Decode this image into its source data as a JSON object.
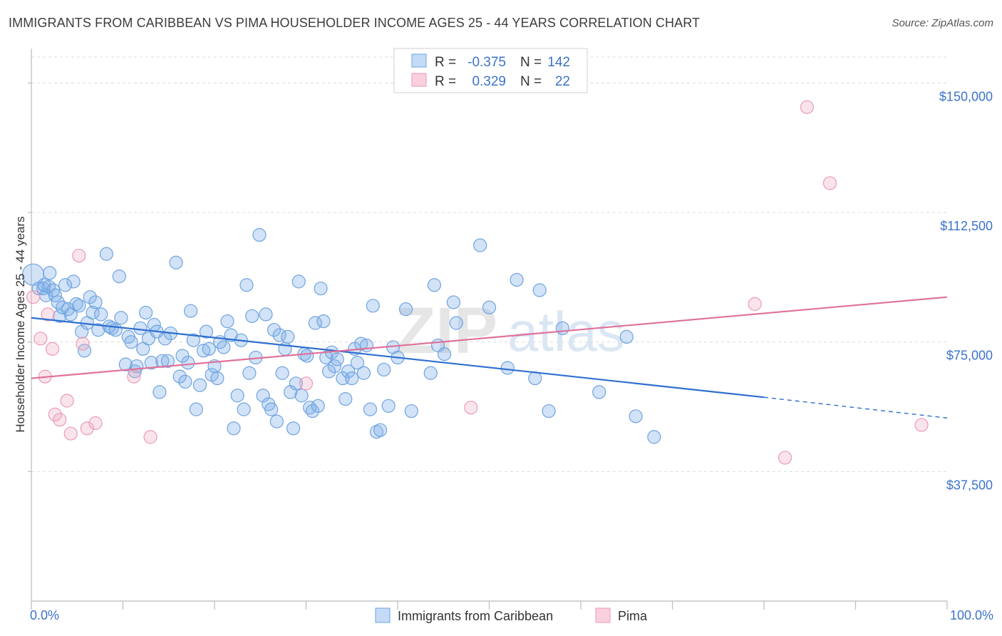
{
  "title": "IMMIGRANTS FROM CARIBBEAN VS PIMA HOUSEHOLDER INCOME AGES 25 - 44 YEARS CORRELATION CHART",
  "source": "Source: ZipAtlas.com",
  "watermark": {
    "zip": "ZIP",
    "atlas": "atlas"
  },
  "colors": {
    "blue": "#7fb0e8",
    "blue_line": "#2f6fd0",
    "pink": "#f0a5be",
    "pink_line": "#e0709a",
    "tick_text": "#3b73c9"
  },
  "legend": {
    "rows": [
      {
        "r_label": "R =",
        "r_value": "-0.375",
        "n_label": "N =",
        "n_value": "142"
      },
      {
        "r_label": "R =",
        "r_value": "0.329",
        "n_label": "N =",
        "n_value": "22"
      }
    ]
  },
  "bottom_legend": [
    "Immigrants from Caribbean",
    "Pima"
  ],
  "chart_data": {
    "type": "scatter",
    "title": "IMMIGRANTS FROM CARIBBEAN VS PIMA HOUSEHOLDER INCOME AGES 25 - 44 YEARS CORRELATION CHART",
    "xlabel": "",
    "ylabel": "Householder Income Ages 25 - 44 years",
    "xlim": [
      0,
      100
    ],
    "ylim": [
      0,
      157500
    ],
    "x_tick_labels": [
      "0.0%",
      "100.0%"
    ],
    "y_ticks": [
      37500,
      75000,
      112500,
      150000
    ],
    "y_tick_labels": [
      "$37,500",
      "$75,000",
      "$112,500",
      "$150,000"
    ],
    "grid": true,
    "legend_position": "top-center",
    "series": [
      {
        "name": "Immigrants from Caribbean",
        "color": "#7fb0e8",
        "trend": {
          "x": [
            0,
            80,
            100
          ],
          "y": [
            82000,
            59000,
            53000
          ],
          "dashed_from": 80
        },
        "points": [
          [
            0.2,
            94500
          ],
          [
            0.8,
            90500
          ],
          [
            1.3,
            90500
          ],
          [
            1.6,
            88500
          ],
          [
            1.9,
            91000
          ],
          [
            1.4,
            91500
          ],
          [
            2.0,
            95000
          ],
          [
            2.4,
            90000
          ],
          [
            2.6,
            88500
          ],
          [
            2.9,
            86500
          ],
          [
            3.1,
            82500
          ],
          [
            3.4,
            85000
          ],
          [
            3.7,
            91500
          ],
          [
            4.0,
            84500
          ],
          [
            4.3,
            83000
          ],
          [
            4.6,
            92500
          ],
          [
            4.9,
            86000
          ],
          [
            5.2,
            85500
          ],
          [
            5.5,
            78000
          ],
          [
            5.8,
            72500
          ],
          [
            6.1,
            80500
          ],
          [
            6.4,
            88000
          ],
          [
            6.7,
            83500
          ],
          [
            7.0,
            86500
          ],
          [
            7.3,
            78500
          ],
          [
            7.6,
            83000
          ],
          [
            8.2,
            100500
          ],
          [
            8.5,
            79500
          ],
          [
            8.8,
            79000
          ],
          [
            9.2,
            78500
          ],
          [
            9.6,
            94000
          ],
          [
            9.8,
            82000
          ],
          [
            10.3,
            68500
          ],
          [
            10.6,
            76500
          ],
          [
            10.9,
            75000
          ],
          [
            11.3,
            66500
          ],
          [
            11.5,
            68000
          ],
          [
            11.9,
            79000
          ],
          [
            12.2,
            73000
          ],
          [
            12.5,
            83500
          ],
          [
            12.8,
            76000
          ],
          [
            13.1,
            69000
          ],
          [
            13.4,
            80000
          ],
          [
            13.7,
            78000
          ],
          [
            14.0,
            60500
          ],
          [
            14.3,
            69500
          ],
          [
            14.6,
            76000
          ],
          [
            14.9,
            69500
          ],
          [
            15.2,
            77500
          ],
          [
            15.8,
            98000
          ],
          [
            16.2,
            65000
          ],
          [
            16.5,
            71000
          ],
          [
            16.8,
            63500
          ],
          [
            17.1,
            69000
          ],
          [
            17.4,
            84000
          ],
          [
            17.7,
            75500
          ],
          [
            18.0,
            55500
          ],
          [
            18.4,
            62500
          ],
          [
            18.8,
            72500
          ],
          [
            19.1,
            78000
          ],
          [
            19.4,
            73000
          ],
          [
            19.7,
            65500
          ],
          [
            20.0,
            68000
          ],
          [
            20.3,
            64500
          ],
          [
            20.6,
            75000
          ],
          [
            21.0,
            73500
          ],
          [
            21.4,
            81000
          ],
          [
            21.8,
            77000
          ],
          [
            22.1,
            50000
          ],
          [
            22.5,
            59500
          ],
          [
            22.9,
            75500
          ],
          [
            23.2,
            55500
          ],
          [
            23.5,
            91500
          ],
          [
            23.8,
            66000
          ],
          [
            24.1,
            82500
          ],
          [
            24.5,
            70500
          ],
          [
            24.9,
            106000
          ],
          [
            25.3,
            59500
          ],
          [
            25.6,
            83000
          ],
          [
            25.9,
            57000
          ],
          [
            26.2,
            55500
          ],
          [
            26.5,
            78500
          ],
          [
            26.8,
            52000
          ],
          [
            27.1,
            77000
          ],
          [
            27.4,
            66000
          ],
          [
            27.7,
            73000
          ],
          [
            28.0,
            76500
          ],
          [
            28.3,
            60500
          ],
          [
            28.6,
            50000
          ],
          [
            28.9,
            63000
          ],
          [
            29.2,
            92500
          ],
          [
            29.5,
            59500
          ],
          [
            29.8,
            71500
          ],
          [
            30.1,
            71000
          ],
          [
            30.4,
            56000
          ],
          [
            30.7,
            55000
          ],
          [
            31.0,
            80500
          ],
          [
            31.3,
            56500
          ],
          [
            31.6,
            90500
          ],
          [
            31.9,
            81000
          ],
          [
            32.2,
            70500
          ],
          [
            32.5,
            66500
          ],
          [
            32.8,
            72000
          ],
          [
            33.1,
            68000
          ],
          [
            33.4,
            70000
          ],
          [
            34.0,
            64500
          ],
          [
            34.3,
            58500
          ],
          [
            34.6,
            66500
          ],
          [
            35.0,
            64500
          ],
          [
            35.3,
            73000
          ],
          [
            35.6,
            69000
          ],
          [
            36.0,
            74500
          ],
          [
            36.3,
            66000
          ],
          [
            36.6,
            74000
          ],
          [
            37.0,
            55500
          ],
          [
            37.3,
            85500
          ],
          [
            37.7,
            49000
          ],
          [
            38.1,
            49500
          ],
          [
            38.5,
            67000
          ],
          [
            39.0,
            56500
          ],
          [
            39.5,
            73500
          ],
          [
            40.0,
            70500
          ],
          [
            40.9,
            84500
          ],
          [
            41.5,
            55000
          ],
          [
            43.6,
            66000
          ],
          [
            44.0,
            91500
          ],
          [
            44.4,
            74000
          ],
          [
            45.1,
            71500
          ],
          [
            46.1,
            86500
          ],
          [
            46.4,
            80500
          ],
          [
            49.0,
            103000
          ],
          [
            50.0,
            85000
          ],
          [
            52.0,
            67500
          ],
          [
            53.0,
            93000
          ],
          [
            55.0,
            64500
          ],
          [
            55.5,
            90000
          ],
          [
            56.5,
            55000
          ],
          [
            58.0,
            79000
          ],
          [
            62.0,
            60500
          ],
          [
            65.0,
            76500
          ],
          [
            66.0,
            53500
          ],
          [
            68.0,
            47500
          ]
        ]
      },
      {
        "name": "Pima",
        "color": "#f0a5be",
        "trend": {
          "x": [
            0,
            100
          ],
          "y": [
            64500,
            88000
          ]
        },
        "points": [
          [
            0.2,
            88000
          ],
          [
            1.0,
            76000
          ],
          [
            1.5,
            65000
          ],
          [
            1.8,
            83000
          ],
          [
            2.3,
            73000
          ],
          [
            2.6,
            54000
          ],
          [
            3.1,
            52500
          ],
          [
            3.9,
            58000
          ],
          [
            4.3,
            48500
          ],
          [
            5.2,
            100000
          ],
          [
            5.6,
            74500
          ],
          [
            6.1,
            50000
          ],
          [
            7.0,
            51500
          ],
          [
            11.2,
            65000
          ],
          [
            13.0,
            47500
          ],
          [
            30.0,
            63000
          ],
          [
            48.0,
            56000
          ],
          [
            79.0,
            86000
          ],
          [
            82.3,
            41500
          ],
          [
            84.7,
            143000
          ],
          [
            87.2,
            121000
          ],
          [
            97.2,
            51000
          ]
        ]
      }
    ]
  }
}
